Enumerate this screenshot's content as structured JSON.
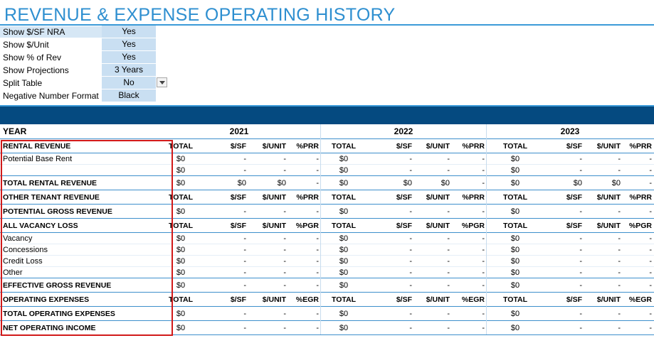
{
  "title": "REVENUE & EXPENSE OPERATING HISTORY",
  "settings": [
    {
      "label": "Show $/SF NRA",
      "value": "Yes",
      "highlight": true
    },
    {
      "label": "Show $/Unit",
      "value": "Yes",
      "highlight": false
    },
    {
      "label": "Show % of Rev",
      "value": "Yes",
      "highlight": false
    },
    {
      "label": "Show Projections",
      "value": "3 Years",
      "highlight": false
    },
    {
      "label": "Split Table",
      "value": "No",
      "highlight": false,
      "dropdown": true
    },
    {
      "label": "Negative Number Format",
      "value": "Black",
      "highlight": false
    }
  ],
  "colors": {
    "accent": "#2e8fd0",
    "band": "#054a80",
    "input": "#c9dff2",
    "redbox": "#d11a1a"
  },
  "header": {
    "label": "YEAR",
    "years": [
      "2021",
      "2022",
      "2023"
    ]
  },
  "rows": [
    {
      "type": "section",
      "label": "RENTAL REVENUE",
      "cells": [
        "TOTAL",
        "$/SF",
        "$/UNIT",
        "%PRR"
      ]
    },
    {
      "type": "data",
      "label": "Potential Base Rent",
      "cells": [
        "$0",
        "-",
        "-",
        "-"
      ]
    },
    {
      "type": "data",
      "label": "",
      "cells": [
        "$0",
        "-",
        "-",
        "-"
      ]
    },
    {
      "type": "total",
      "label": "TOTAL RENTAL REVENUE",
      "cells": [
        "$0",
        "$0",
        "$0",
        "-"
      ]
    },
    {
      "type": "section",
      "label": "OTHER TENANT REVENUE",
      "cells": [
        "TOTAL",
        "$/SF",
        "$/UNIT",
        "%PRR"
      ]
    },
    {
      "type": "total",
      "label": "POTENTIAL GROSS REVENUE",
      "cells": [
        "$0",
        "-",
        "-",
        "-"
      ]
    },
    {
      "type": "section",
      "label": "ALL VACANCY LOSS",
      "cells": [
        "TOTAL",
        "$/SF",
        "$/UNIT",
        "%PGR"
      ]
    },
    {
      "type": "data",
      "label": "Vacancy",
      "cells": [
        "$0",
        "-",
        "-",
        "-"
      ]
    },
    {
      "type": "data",
      "label": "Concessions",
      "cells": [
        "$0",
        "-",
        "-",
        "-"
      ]
    },
    {
      "type": "data",
      "label": "Credit Loss",
      "cells": [
        "$0",
        "-",
        "-",
        "-"
      ]
    },
    {
      "type": "data",
      "label": "Other",
      "cells": [
        "$0",
        "-",
        "-",
        "-"
      ]
    },
    {
      "type": "total",
      "label": "EFFECTIVE GROSS REVENUE",
      "cells": [
        "$0",
        "-",
        "-",
        "-"
      ]
    },
    {
      "type": "section",
      "label": "OPERATING EXPENSES",
      "cells": [
        "TOTAL",
        "$/SF",
        "$/UNIT",
        "%EGR"
      ]
    },
    {
      "type": "total",
      "label": "TOTAL OPERATING EXPENSES",
      "cells": [
        "$0",
        "-",
        "-",
        "-"
      ]
    },
    {
      "type": "total",
      "label": "NET OPERATING INCOME",
      "cells": [
        "$0",
        "-",
        "-",
        "-"
      ]
    }
  ]
}
